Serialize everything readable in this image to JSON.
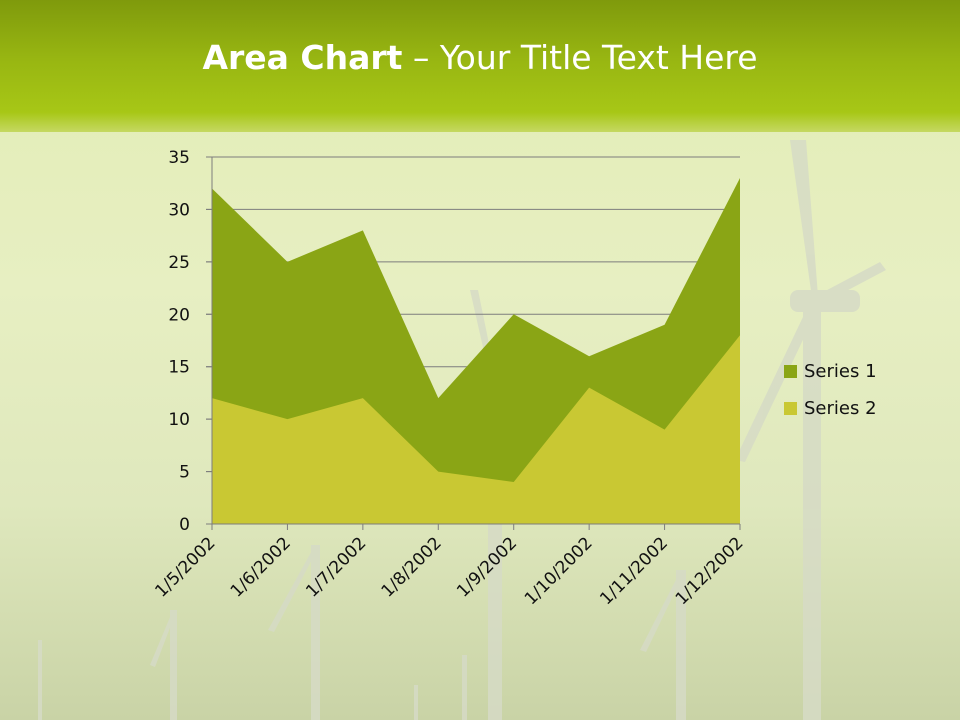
{
  "slide": {
    "title_bold": "Area Chart",
    "title_rest": " – Your Title Text Here"
  },
  "chart_data": {
    "type": "area",
    "categories": [
      "1/5/2002",
      "1/6/2002",
      "1/7/2002",
      "1/8/2002",
      "1/9/2002",
      "1/10/2002",
      "1/11/2002",
      "1/12/2002"
    ],
    "series": [
      {
        "name": "Series 1",
        "values": [
          32,
          25,
          28,
          12,
          20,
          16,
          19,
          33
        ],
        "color": "#8aa515"
      },
      {
        "name": "Series 2",
        "values": [
          12,
          10,
          12,
          5,
          4,
          13,
          9,
          18
        ],
        "color": "#c9c833"
      }
    ],
    "yticks": [
      0,
      5,
      10,
      15,
      20,
      25,
      30,
      35
    ],
    "ylim": [
      0,
      35
    ],
    "grid": true,
    "legend": "right"
  }
}
